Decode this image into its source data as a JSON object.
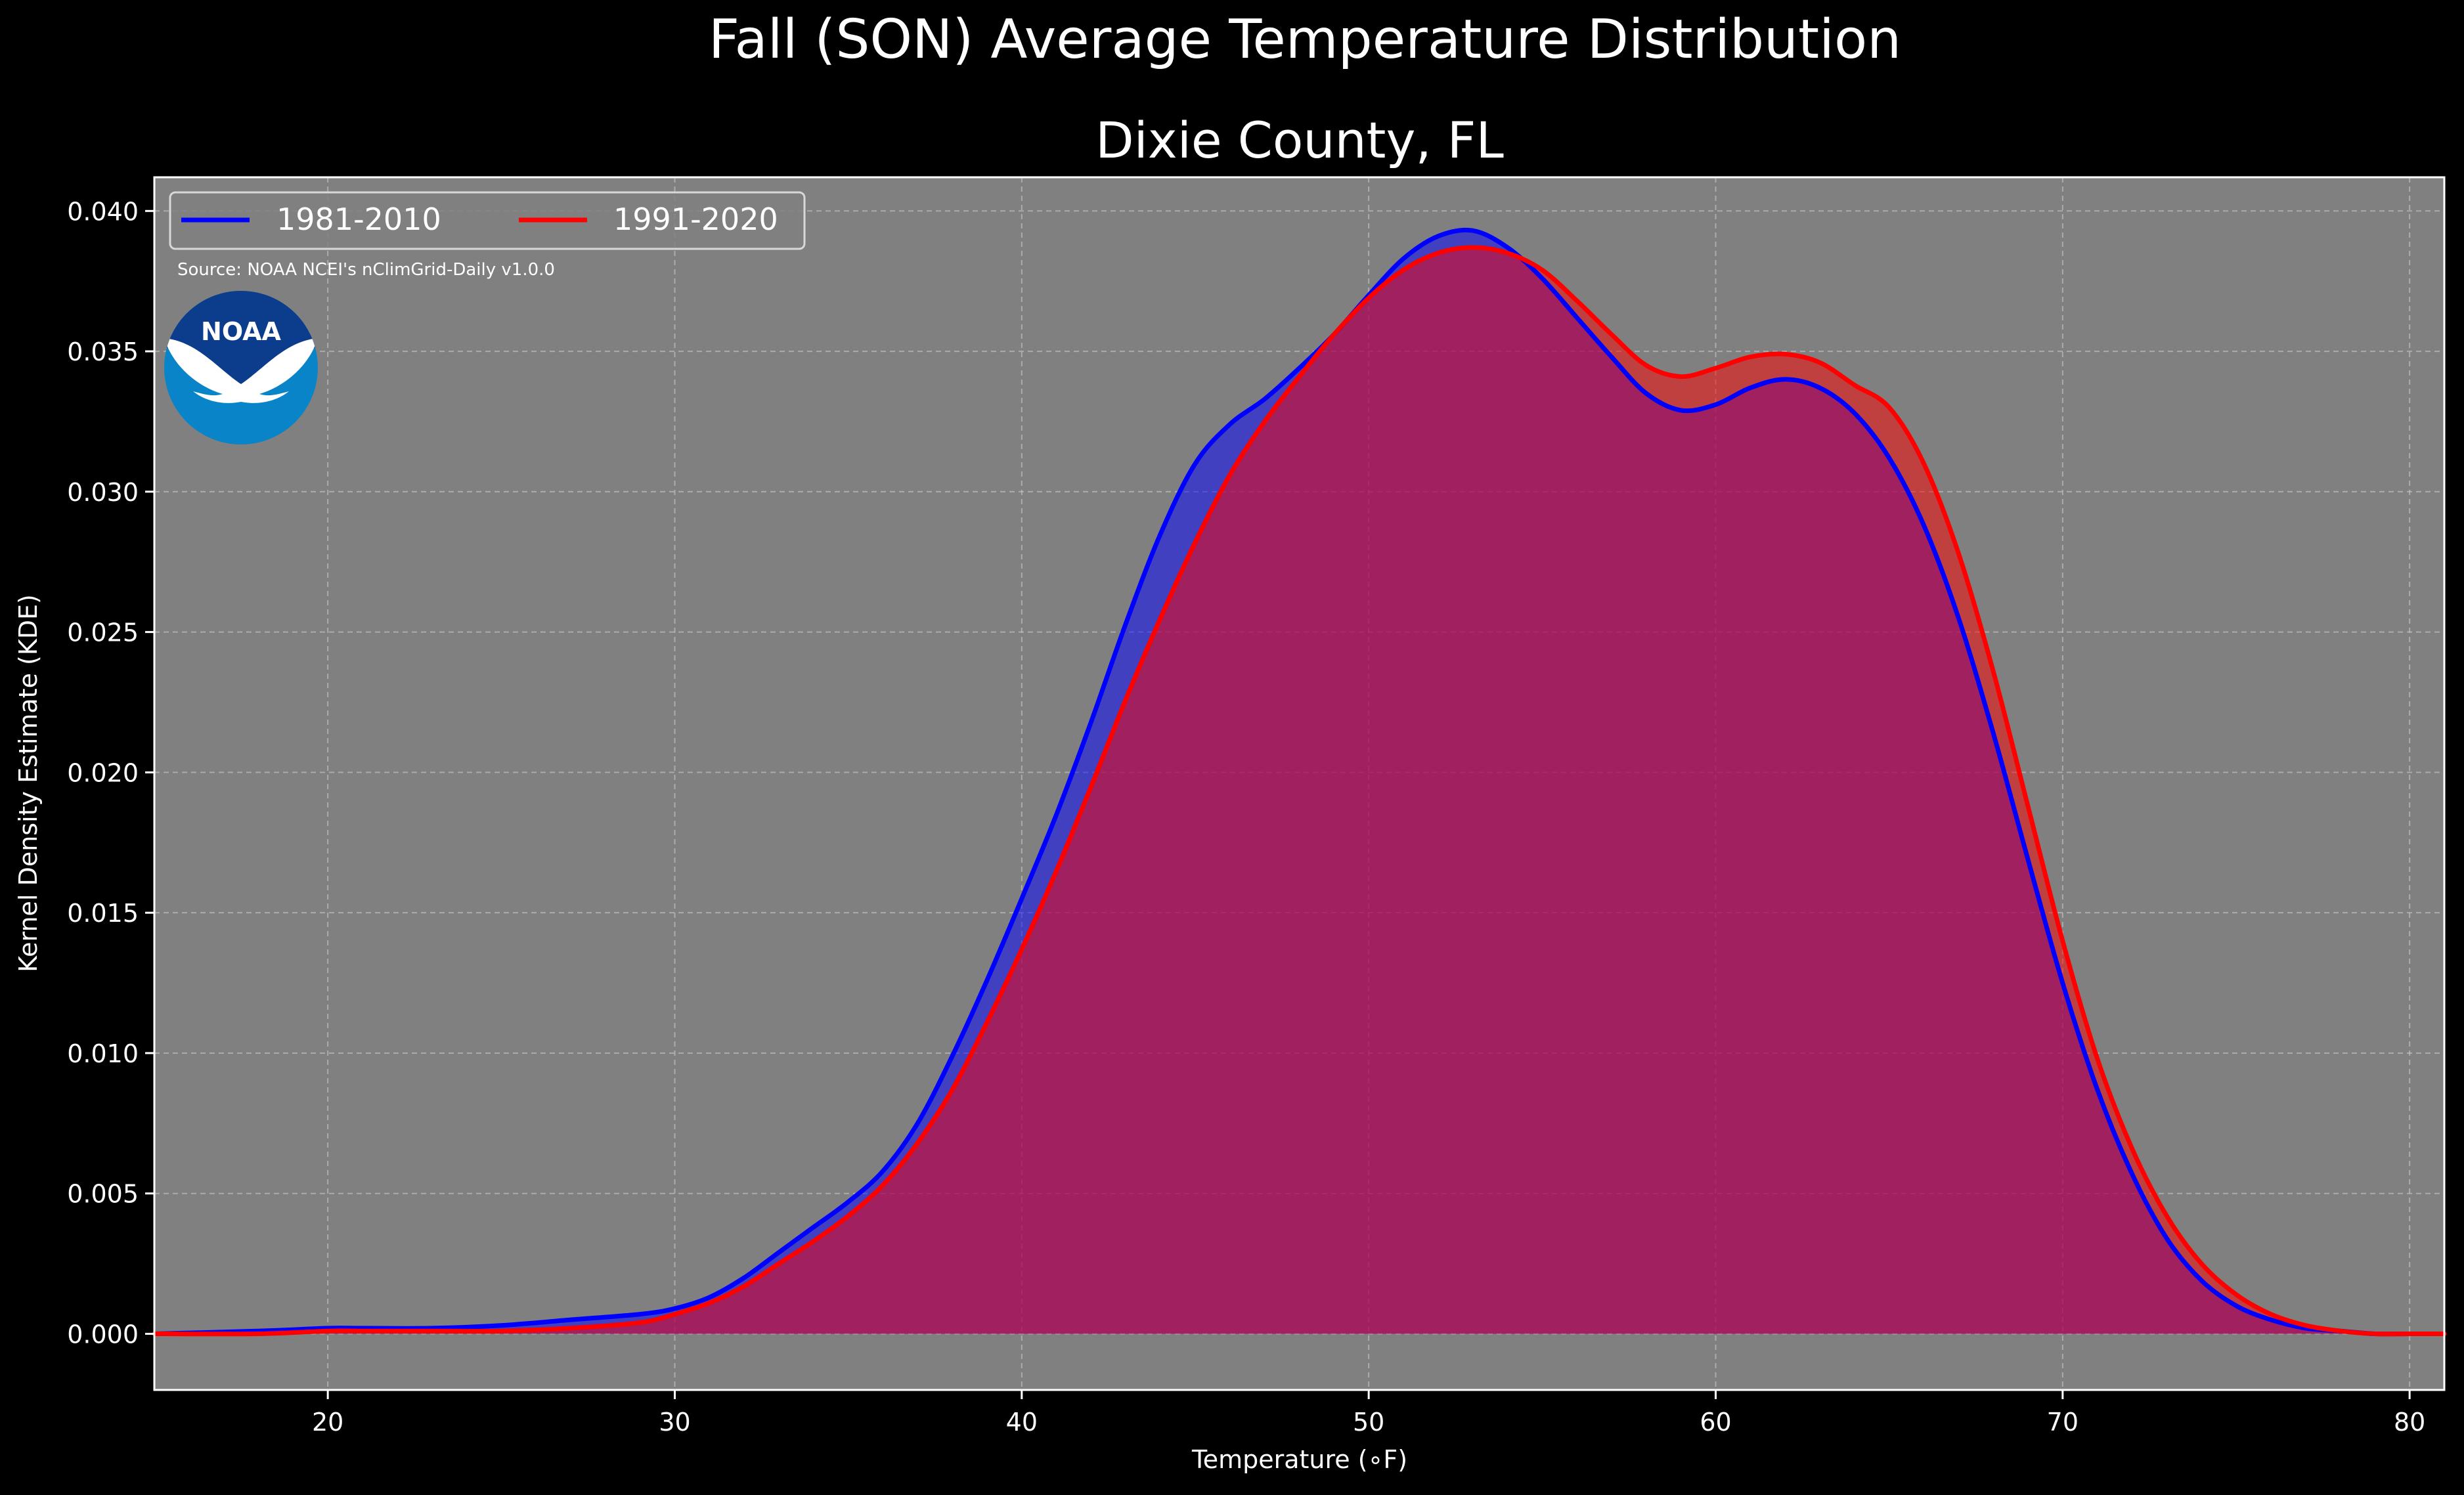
{
  "chart_data": {
    "type": "area",
    "title": "Fall (SON) Average Temperature Distribution",
    "subtitle": "Dixie County, FL",
    "xlabel": "Temperature (∘F)",
    "ylabel": "Kernel Density Estimate (KDE)",
    "source": "Source: NOAA NCEI's nClimGrid-Daily v1.0.0",
    "logo_text": "NOAA",
    "xlim": [
      15,
      81
    ],
    "ylim": [
      -0.002,
      0.0412
    ],
    "xticks": [
      20,
      30,
      40,
      50,
      60,
      70,
      80
    ],
    "xtick_labels": [
      "20",
      "30",
      "40",
      "50",
      "60",
      "70",
      "80"
    ],
    "yticks": [
      0.0,
      0.005,
      0.01,
      0.015,
      0.02,
      0.025,
      0.03,
      0.035,
      0.04
    ],
    "ytick_labels": [
      "0.000",
      "0.005",
      "0.010",
      "0.015",
      "0.020",
      "0.025",
      "0.030",
      "0.035",
      "0.040"
    ],
    "grid": true,
    "legend_position": "top-left",
    "background_color": "#808080",
    "series": [
      {
        "name": "1981-2010",
        "color": "#0000ff",
        "fill": "#0000ff",
        "x": [
          15,
          18,
          20,
          21,
          23,
          25,
          27,
          29,
          30,
          31,
          32,
          33,
          34,
          35,
          36,
          37,
          38,
          39,
          40,
          41,
          42,
          43,
          44,
          45,
          46,
          47,
          48,
          49,
          50,
          51,
          52,
          53,
          54,
          55,
          56,
          57,
          58,
          59,
          60,
          61,
          62,
          63,
          64,
          65,
          66,
          67,
          68,
          69,
          70,
          71,
          72,
          73,
          74,
          75,
          76,
          77,
          78,
          79,
          80,
          81
        ],
        "y": [
          0.0,
          0.0001,
          0.0002,
          0.0002,
          0.0002,
          0.0003,
          0.0005,
          0.0007,
          0.0009,
          0.0013,
          0.002,
          0.0029,
          0.0038,
          0.0047,
          0.0058,
          0.0075,
          0.0099,
          0.0126,
          0.0155,
          0.0185,
          0.0218,
          0.0253,
          0.0285,
          0.031,
          0.0324,
          0.0333,
          0.0344,
          0.0356,
          0.037,
          0.0383,
          0.0391,
          0.0393,
          0.0387,
          0.0376,
          0.0362,
          0.0348,
          0.0335,
          0.0329,
          0.0331,
          0.0337,
          0.034,
          0.0337,
          0.0328,
          0.0312,
          0.0288,
          0.0255,
          0.0214,
          0.0169,
          0.0125,
          0.0087,
          0.0057,
          0.0034,
          0.0019,
          0.001,
          0.0005,
          0.0002,
          0.0001,
          0.0,
          0.0,
          0.0
        ]
      },
      {
        "name": "1991-2020",
        "color": "#ff0000",
        "fill": "#ff0000",
        "x": [
          15,
          18,
          20,
          21,
          23,
          25,
          27,
          29,
          30,
          31,
          32,
          33,
          34,
          35,
          36,
          37,
          38,
          39,
          40,
          41,
          42,
          43,
          44,
          45,
          46,
          47,
          48,
          49,
          50,
          51,
          52,
          53,
          54,
          55,
          56,
          57,
          58,
          59,
          60,
          61,
          62,
          63,
          64,
          65,
          66,
          67,
          68,
          69,
          70,
          71,
          72,
          73,
          74,
          75,
          76,
          77,
          78,
          79,
          80,
          81
        ],
        "y": [
          0.0,
          0.0,
          0.0001,
          0.0001,
          0.0001,
          0.0001,
          0.0002,
          0.0004,
          0.0007,
          0.0011,
          0.0017,
          0.0025,
          0.0033,
          0.0042,
          0.0053,
          0.0068,
          0.0087,
          0.0111,
          0.0137,
          0.0165,
          0.0195,
          0.0226,
          0.0255,
          0.0282,
          0.0306,
          0.0325,
          0.0341,
          0.0356,
          0.0369,
          0.0379,
          0.0385,
          0.0387,
          0.0385,
          0.0379,
          0.0368,
          0.0356,
          0.0345,
          0.0341,
          0.0344,
          0.0348,
          0.0349,
          0.0346,
          0.0338,
          0.033,
          0.031,
          0.0278,
          0.0236,
          0.0188,
          0.014,
          0.0098,
          0.0066,
          0.0042,
          0.0025,
          0.0014,
          0.0007,
          0.0003,
          0.0001,
          0.0,
          0.0,
          0.0
        ]
      }
    ]
  }
}
